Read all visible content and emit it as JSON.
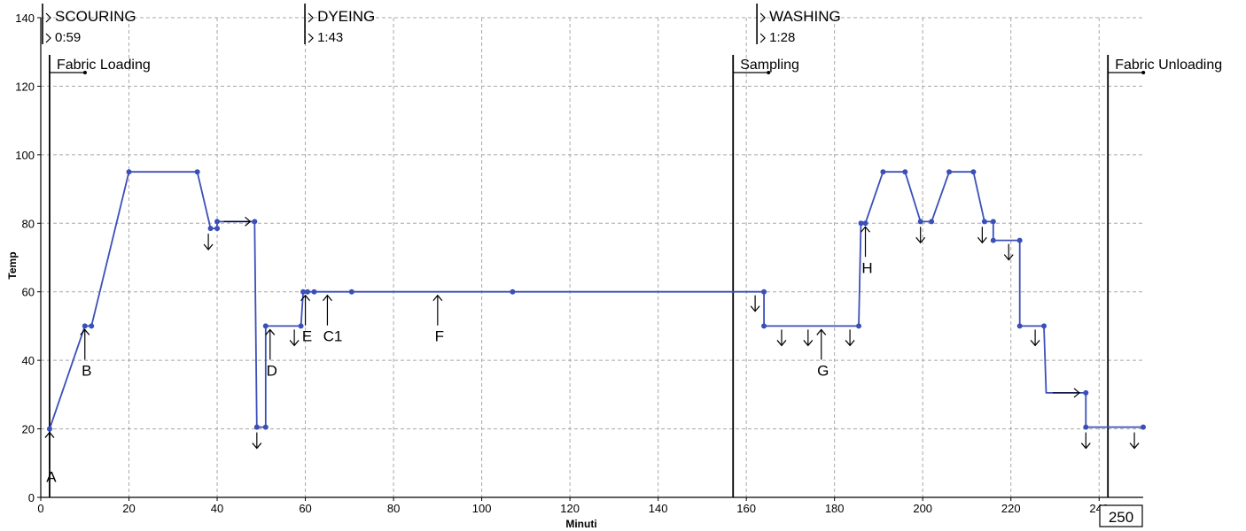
{
  "chart_data": {
    "type": "line",
    "title": "",
    "xlabel": "Minuti",
    "ylabel": "Temp",
    "xlim": [
      0,
      250
    ],
    "ylim": [
      0,
      140
    ],
    "x_ticks": [
      0,
      20,
      40,
      60,
      80,
      100,
      120,
      140,
      160,
      180,
      200,
      220,
      240
    ],
    "y_ticks": [
      0,
      20,
      40,
      60,
      80,
      100,
      120,
      140
    ],
    "grid": true,
    "line_color": "#3b4fb8",
    "series": [
      {
        "points": [
          [
            2,
            20
          ],
          [
            10,
            50
          ],
          [
            11.5,
            50
          ],
          [
            20,
            95
          ],
          [
            35.5,
            95
          ],
          [
            38.5,
            78.5
          ],
          [
            40,
            78.5
          ],
          [
            40,
            80.5
          ],
          [
            48.5,
            80.5
          ],
          [
            49,
            20.5
          ],
          [
            51,
            20.5
          ],
          [
            51,
            50
          ],
          [
            59,
            50
          ],
          [
            59.5,
            60
          ],
          [
            60.5,
            60
          ],
          [
            62,
            60
          ],
          [
            70.5,
            60
          ],
          [
            107,
            60
          ],
          [
            157,
            60
          ],
          [
            164,
            60
          ],
          [
            164,
            50
          ],
          [
            185.5,
            50
          ],
          [
            186,
            80
          ],
          [
            187,
            80
          ],
          [
            191,
            95
          ],
          [
            196,
            95
          ],
          [
            199.5,
            80.5
          ],
          [
            202,
            80.5
          ],
          [
            206,
            95
          ],
          [
            211.5,
            95
          ],
          [
            214,
            80.5
          ],
          [
            216,
            80.5
          ],
          [
            216,
            75
          ],
          [
            222,
            75
          ],
          [
            222,
            50
          ],
          [
            227.5,
            50
          ],
          [
            228,
            30.5
          ],
          [
            237,
            30.5
          ],
          [
            237,
            20.5
          ],
          [
            250,
            20.5
          ]
        ],
        "markers": [
          [
            2,
            20
          ],
          [
            10,
            50
          ],
          [
            11.5,
            50
          ],
          [
            20,
            95
          ],
          [
            35.5,
            95
          ],
          [
            38.5,
            78.5
          ],
          [
            40,
            78.5
          ],
          [
            40,
            80.5
          ],
          [
            48.5,
            80.5
          ],
          [
            49,
            20.5
          ],
          [
            51,
            20.5
          ],
          [
            51,
            50
          ],
          [
            59,
            50
          ],
          [
            59.5,
            60
          ],
          [
            60.5,
            60
          ],
          [
            62,
            60
          ],
          [
            70.5,
            60
          ],
          [
            107,
            60
          ],
          [
            164,
            60
          ],
          [
            164,
            50
          ],
          [
            185.5,
            50
          ],
          [
            186,
            80
          ],
          [
            187,
            80
          ],
          [
            191,
            95
          ],
          [
            196,
            95
          ],
          [
            199.5,
            80.5
          ],
          [
            202,
            80.5
          ],
          [
            206,
            95
          ],
          [
            211.5,
            95
          ],
          [
            214,
            80.5
          ],
          [
            216,
            80.5
          ],
          [
            216,
            75
          ],
          [
            222,
            75
          ],
          [
            222,
            50
          ],
          [
            227.5,
            50
          ],
          [
            237,
            30.5
          ],
          [
            237,
            20.5
          ],
          [
            250,
            20.5
          ]
        ]
      }
    ],
    "phases": [
      {
        "name": "SCOURING",
        "duration": "0:59",
        "x": 0
      },
      {
        "name": "DYEING",
        "duration": "1:43",
        "x": 59.5
      },
      {
        "name": "WASHING",
        "duration": "1:28",
        "x": 162
      }
    ],
    "events": [
      {
        "label": "Fabric Loading",
        "x": 2
      },
      {
        "label": "Sampling",
        "x": 157
      },
      {
        "label": "Fabric Unloading",
        "x": 242
      }
    ],
    "markers": [
      {
        "label": "A",
        "x": 2,
        "y": 20
      },
      {
        "label": "B",
        "x": 10,
        "y": 50
      },
      {
        "label": "D",
        "x": 52,
        "y": 50
      },
      {
        "label": "E",
        "x": 60,
        "y": 60
      },
      {
        "label": "C1",
        "x": 65,
        "y": 60
      },
      {
        "label": "F",
        "x": 90,
        "y": 60
      },
      {
        "label": "G",
        "x": 177,
        "y": 50
      },
      {
        "label": "H",
        "x": 187,
        "y": 80
      }
    ],
    "down_arrows": [
      [
        38,
        78
      ],
      [
        49,
        20
      ],
      [
        57.5,
        50
      ],
      [
        162,
        60
      ],
      [
        168,
        50
      ],
      [
        174,
        50
      ],
      [
        183.5,
        50
      ],
      [
        199.5,
        80
      ],
      [
        213.5,
        80
      ],
      [
        219.5,
        75
      ],
      [
        225.5,
        50
      ],
      [
        237,
        20
      ],
      [
        248,
        20
      ]
    ],
    "right_arrows": [
      [
        41.5,
        80.5
      ],
      [
        229.5,
        30.5
      ]
    ],
    "zoom_value": "250"
  }
}
